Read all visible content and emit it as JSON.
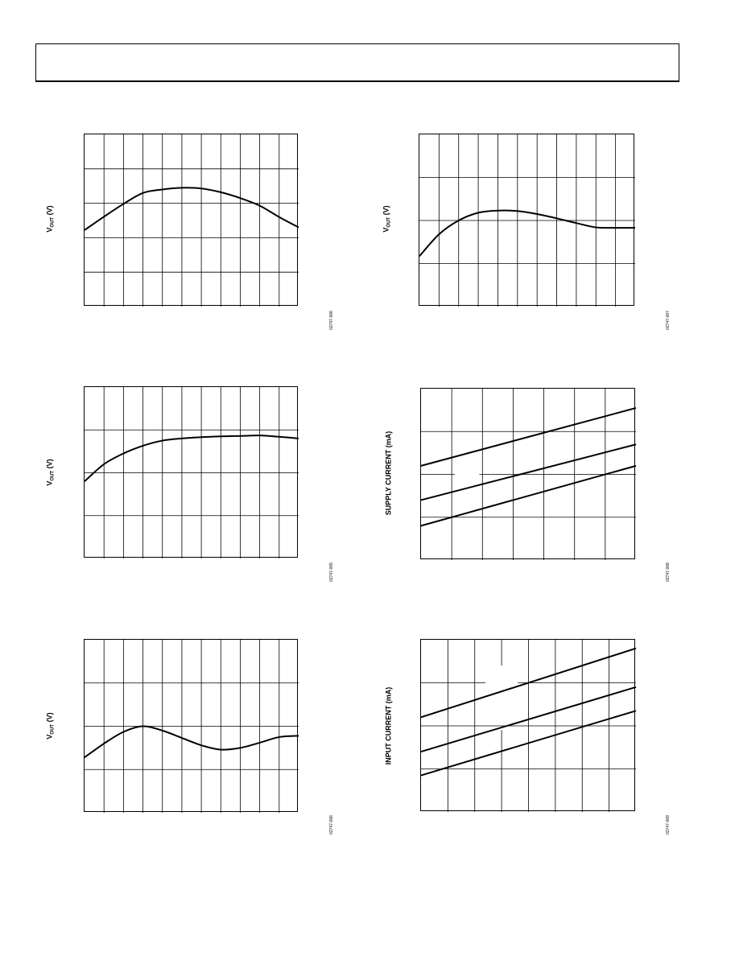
{
  "page": {},
  "chart_data": [
    {
      "type": "line",
      "id": "c1",
      "ylabel_main": "V",
      "ylabel_sub": "OUT",
      "ylabel_unit": " (V)",
      "figure_code": "02747-006",
      "xlim": [
        0,
        11
      ],
      "ylim": [
        0,
        5
      ],
      "x_divisions": 11,
      "y_divisions": 5,
      "grid": true,
      "series": [
        {
          "x": [
            0,
            1,
            2,
            3,
            4,
            5,
            6,
            7,
            8,
            9,
            10,
            11
          ],
          "values": [
            2.22,
            2.61,
            2.98,
            3.3,
            3.4,
            3.45,
            3.43,
            3.32,
            3.15,
            2.93,
            2.6,
            2.3
          ]
        }
      ]
    },
    {
      "type": "line",
      "id": "c2",
      "ylabel_main": "V",
      "ylabel_sub": "OUT",
      "ylabel_unit": " (V)",
      "figure_code": "02747-007",
      "xlim": [
        0,
        11
      ],
      "ylim": [
        0,
        4
      ],
      "x_divisions": 11,
      "y_divisions": 4,
      "grid": true,
      "series": [
        {
          "x": [
            0,
            1,
            2,
            3,
            4,
            5,
            6,
            7,
            8,
            9,
            10,
            11
          ],
          "values": [
            1.17,
            1.68,
            2.0,
            2.18,
            2.23,
            2.22,
            2.15,
            2.05,
            1.94,
            1.84,
            1.83,
            1.83
          ]
        }
      ]
    },
    {
      "type": "line",
      "id": "c3",
      "ylabel_main": "V",
      "ylabel_sub": "OUT",
      "ylabel_unit": " (V)",
      "figure_code": "02747-005",
      "xlim": [
        0,
        11
      ],
      "ylim": [
        0,
        4
      ],
      "x_divisions": 11,
      "y_divisions": 4,
      "grid": true,
      "series": [
        {
          "x": [
            0,
            1,
            2,
            3,
            4,
            5,
            6,
            7,
            8,
            9,
            10,
            11
          ],
          "values": [
            1.8,
            2.2,
            2.45,
            2.63,
            2.75,
            2.8,
            2.83,
            2.85,
            2.86,
            2.87,
            2.84,
            2.8
          ]
        }
      ]
    },
    {
      "type": "line",
      "id": "c4",
      "ylabel_main": "SUPPLY CURRENT (mA)",
      "ylabel_sub": "",
      "ylabel_unit": "",
      "figure_code": "02747-008",
      "xlim": [
        0,
        7
      ],
      "ylim": [
        0,
        4
      ],
      "x_divisions": 7,
      "y_divisions": 4,
      "grid": true,
      "grid_gaps": [
        {
          "row": 2,
          "from": 1.1,
          "to": 1.9
        }
      ],
      "series": [
        {
          "x": [
            0,
            7
          ],
          "values": [
            2.2,
            3.55
          ]
        },
        {
          "x": [
            0,
            7
          ],
          "values": [
            1.4,
            2.7
          ]
        },
        {
          "x": [
            0,
            7
          ],
          "values": [
            0.8,
            2.2
          ]
        }
      ]
    },
    {
      "type": "line",
      "id": "c5",
      "ylabel_main": "V",
      "ylabel_sub": "OUT",
      "ylabel_unit": " (V)",
      "figure_code": "02747-006",
      "xlim": [
        0,
        11
      ],
      "ylim": [
        0,
        4
      ],
      "x_divisions": 11,
      "y_divisions": 4,
      "grid": true,
      "series": [
        {
          "x": [
            0,
            1,
            2,
            3,
            4,
            5,
            6,
            7,
            8,
            9,
            10,
            11
          ],
          "values": [
            1.28,
            1.6,
            1.87,
            2.0,
            1.9,
            1.73,
            1.56,
            1.46,
            1.5,
            1.62,
            1.75,
            1.78
          ]
        }
      ]
    },
    {
      "type": "line",
      "id": "c6",
      "ylabel_main": "INPUT CURRENT (mA)",
      "ylabel_sub": "",
      "ylabel_unit": "",
      "figure_code": "02747-009",
      "xlim": [
        0,
        8
      ],
      "ylim": [
        0,
        4
      ],
      "x_divisions": 8,
      "y_divisions": 4,
      "grid": true,
      "grid_gaps": [
        {
          "row": 3,
          "from": 2.4,
          "to": 3.6
        },
        {
          "col": 3,
          "from": 1.9,
          "to": 3.4
        }
      ],
      "series": [
        {
          "x": [
            0,
            8
          ],
          "values": [
            2.2,
            3.8
          ]
        },
        {
          "x": [
            0,
            8
          ],
          "values": [
            1.4,
            2.9
          ]
        },
        {
          "x": [
            0,
            8
          ],
          "values": [
            0.85,
            2.35
          ]
        }
      ]
    }
  ]
}
